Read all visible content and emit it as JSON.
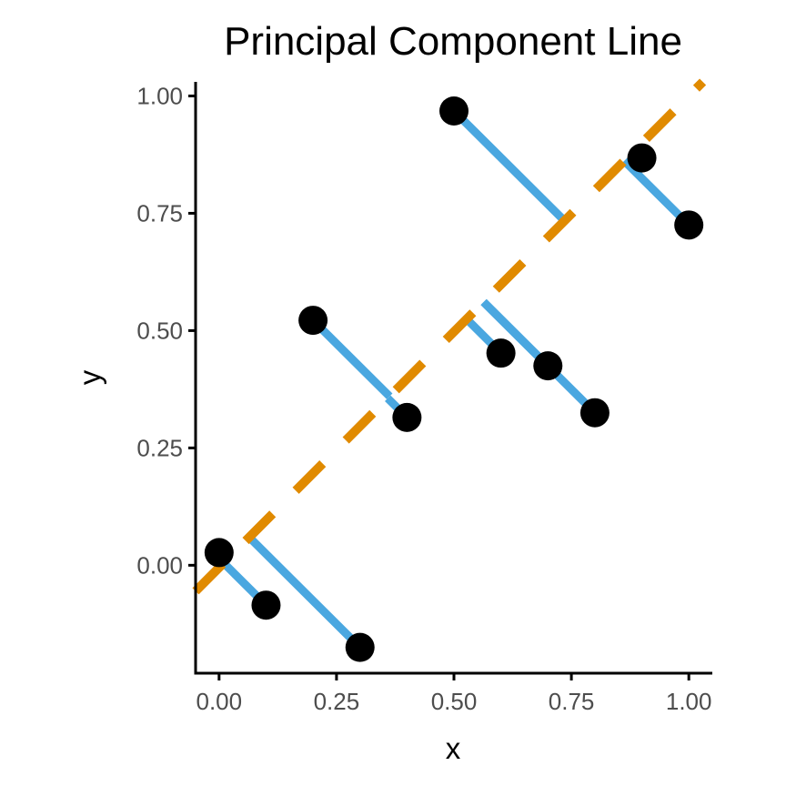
{
  "chart_data": {
    "type": "scatter",
    "title": "Principal Component Line",
    "xlabel": "x",
    "ylabel": "y",
    "xlim": [
      -0.05,
      1.05
    ],
    "ylim": [
      -0.23,
      1.03
    ],
    "x_ticks": [
      {
        "value": 0.0,
        "label": "0.00"
      },
      {
        "value": 0.25,
        "label": "0.25"
      },
      {
        "value": 0.5,
        "label": "0.50"
      },
      {
        "value": 0.75,
        "label": "0.75"
      },
      {
        "value": 1.0,
        "label": "1.00"
      }
    ],
    "y_ticks": [
      {
        "value": 0.0,
        "label": "0.00"
      },
      {
        "value": 0.25,
        "label": "0.25"
      },
      {
        "value": 0.5,
        "label": "0.50"
      },
      {
        "value": 0.75,
        "label": "0.75"
      },
      {
        "value": 1.0,
        "label": "1.00"
      }
    ],
    "grid": false,
    "points": [
      {
        "x": 0.0,
        "y": 0.027
      },
      {
        "x": 0.1,
        "y": -0.085
      },
      {
        "x": 0.2,
        "y": 0.522
      },
      {
        "x": 0.3,
        "y": -0.175
      },
      {
        "x": 0.4,
        "y": 0.315
      },
      {
        "x": 0.5,
        "y": 0.968
      },
      {
        "x": 0.6,
        "y": 0.452
      },
      {
        "x": 0.7,
        "y": 0.425
      },
      {
        "x": 0.8,
        "y": 0.325
      },
      {
        "x": 0.9,
        "y": 0.868
      },
      {
        "x": 1.0,
        "y": 0.725
      }
    ],
    "pc_line": {
      "intercept": -0.005,
      "slope": 1.005
    },
    "colors": {
      "points": "#000000",
      "projections": "#4aa7e0",
      "pc_line": "#e08a00",
      "axis": "#000000",
      "tick_labels": "#4d4d4d"
    }
  }
}
